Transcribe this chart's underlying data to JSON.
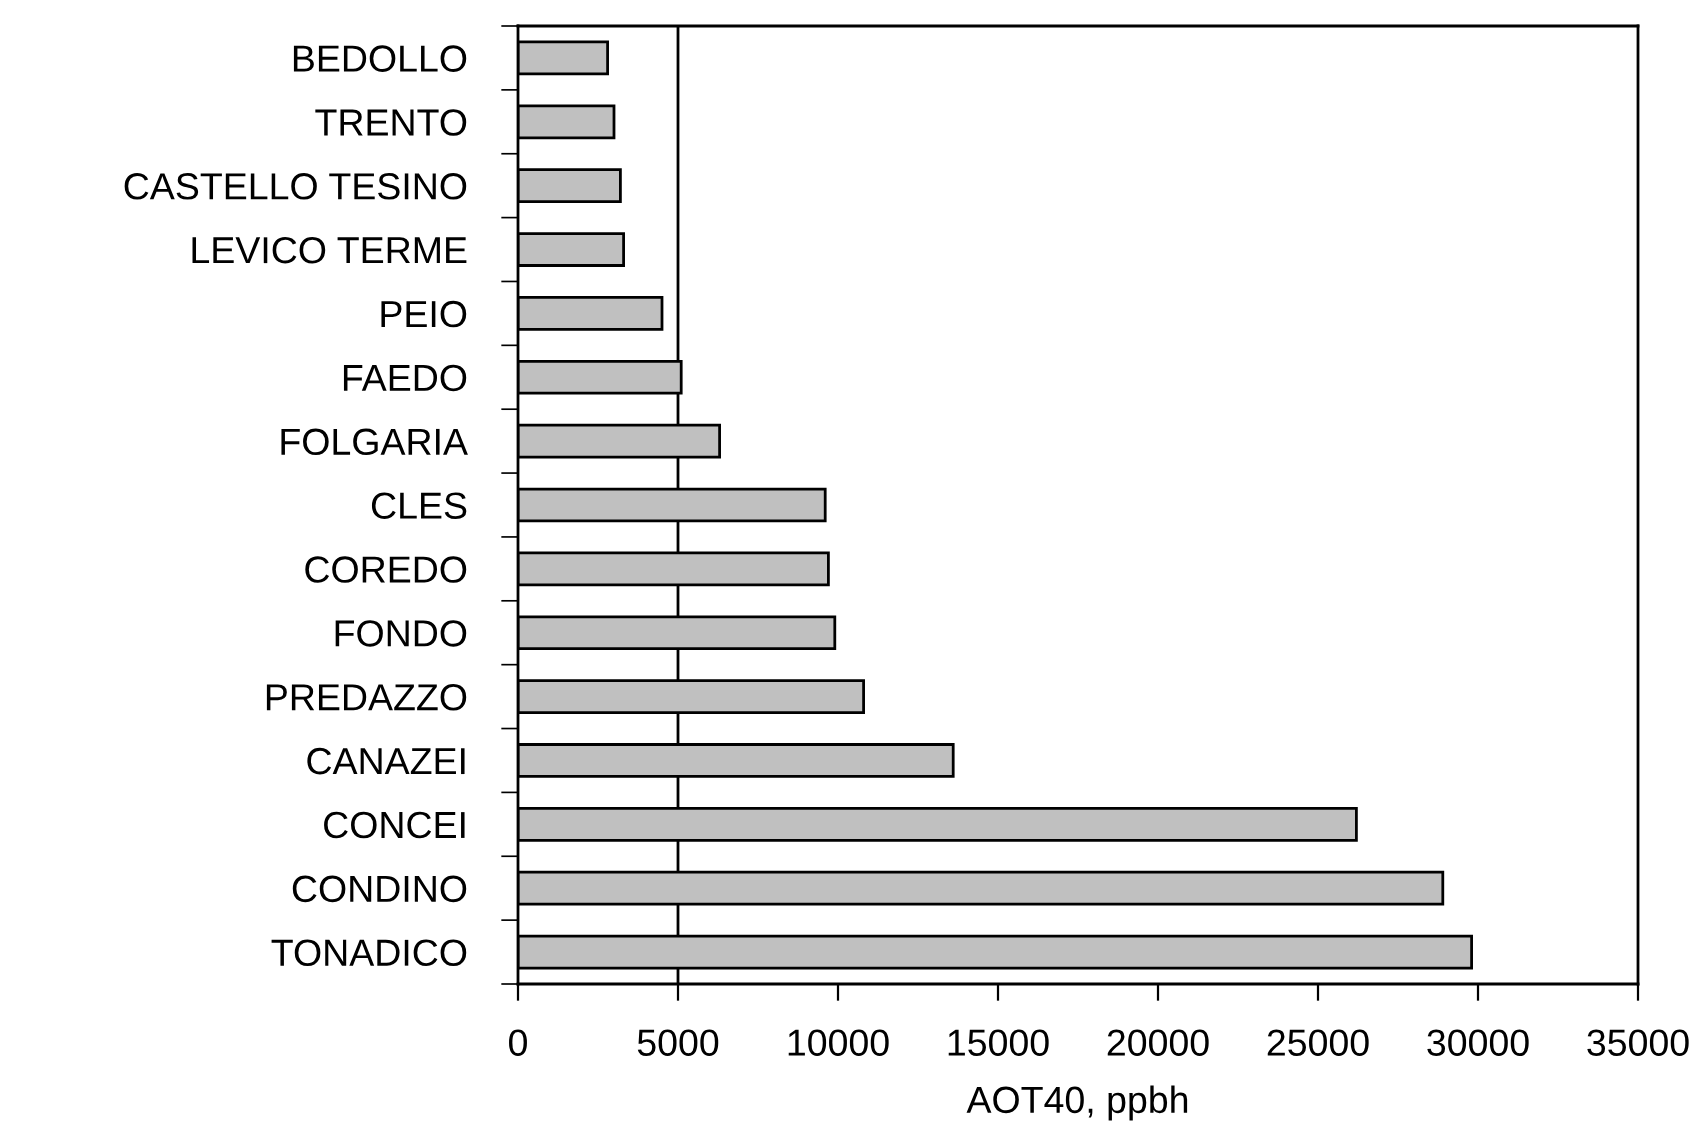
{
  "chart_data": {
    "type": "bar",
    "orientation": "horizontal",
    "xlabel": "AOT40, ppbh",
    "categories": [
      "BEDOLLO",
      "TRENTO",
      "CASTELLO TESINO",
      "LEVICO TERME",
      "PEIO",
      "FAEDO",
      "FOLGARIA",
      "CLES",
      "COREDO",
      "FONDO",
      "PREDAZZO",
      "CANAZEI",
      "CONCEI",
      "CONDINO",
      "TONADICO"
    ],
    "values": [
      2800,
      3000,
      3200,
      3300,
      4500,
      5100,
      6300,
      9600,
      9700,
      9900,
      10800,
      13600,
      26200,
      28900,
      29800
    ],
    "color": "#c0c0c0",
    "xlim": [
      0,
      35000
    ],
    "xticks": [
      0,
      5000,
      10000,
      15000,
      20000,
      25000,
      30000,
      35000
    ],
    "ref_lines": [
      {
        "axis": "x",
        "value": 5000,
        "color": "#000000"
      }
    ],
    "grid": false,
    "legend": false
  }
}
